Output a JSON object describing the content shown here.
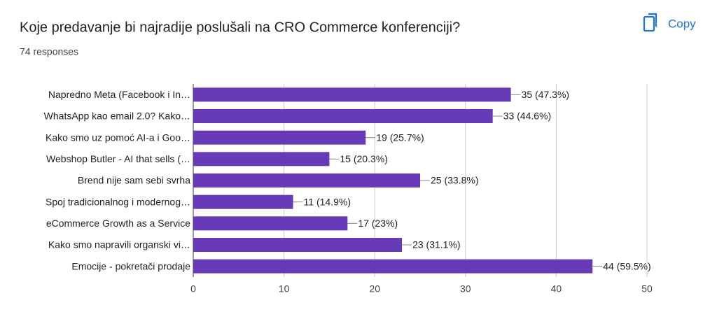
{
  "chart_data": {
    "type": "hbar",
    "title": "Koje predavanje bi najradije poslušali na CRO Commerce konferenciji?",
    "subtitle": "74 responses",
    "categories": [
      "Napredno Meta (Facebook i In…",
      "WhatsApp kao email 2.0? Kako…",
      "Kako smo uz pomoć AI-a i Goo…",
      "Webshop Butler - AI that sells (…",
      "Brend nije sam sebi svrha",
      "Spoj tradicionalnog i modernog…",
      "eCommerce Growth as a Service",
      "Kako smo napravili organski vi…",
      "Emocije - pokretači prodaje"
    ],
    "values": [
      35,
      33,
      19,
      15,
      25,
      11,
      17,
      23,
      44
    ],
    "value_labels": [
      "35 (47.3%)",
      "33 (44.6%)",
      "19 (25.7%)",
      "15 (20.3%)",
      "25 (33.8%)",
      "11 (14.9%)",
      "17 (23%)",
      "23 (31.1%)",
      "44 (59.5%)"
    ],
    "color": "#673ab7",
    "xlim": [
      0,
      50
    ],
    "xticks": [
      0,
      10,
      20,
      30,
      40,
      50
    ],
    "grid": true
  },
  "ui": {
    "copy_button": "Copy"
  }
}
